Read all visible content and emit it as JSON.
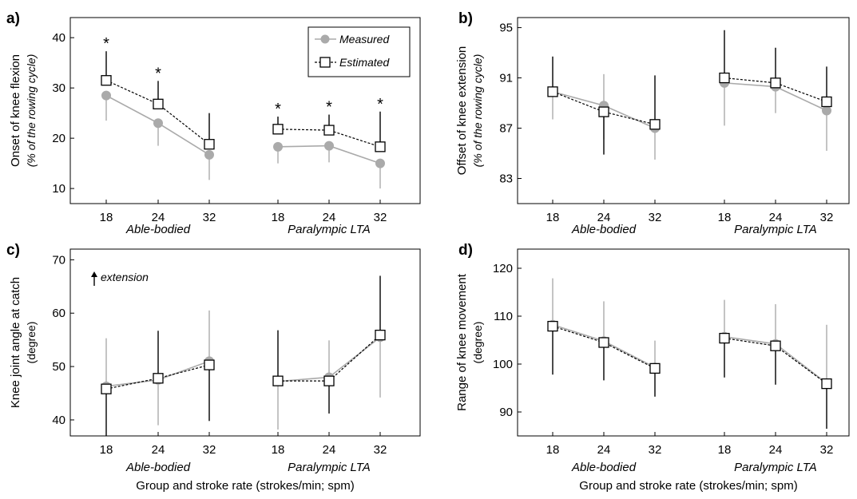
{
  "figure": {
    "xlabel": "Group and stroke rate (strokes/min;  spm)",
    "legend": {
      "measured": "Measured",
      "estimated": "Estimated",
      "measured_color": "#aaaaaa",
      "estimated_color": "#000000",
      "placement": "top-right of panel a"
    }
  },
  "chart_data": [
    {
      "type": "line",
      "panel": "a)",
      "ylabel": "Onset of knee flexion",
      "ylabel_sub": "(% of the rowing cycle)",
      "ylim": [
        7,
        44
      ],
      "yticks": [
        10,
        20,
        30,
        40
      ],
      "groups": [
        "Able-bodied",
        "Paralympic LTA"
      ],
      "categories": [
        "18",
        "24",
        "32",
        "18",
        "24",
        "32"
      ],
      "series": [
        {
          "name": "Measured",
          "values": [
            28.5,
            23.0,
            16.7,
            18.3,
            18.5,
            15.0
          ],
          "err_lo": [
            5.0,
            4.5,
            5.0,
            3.3,
            3.3,
            5.0
          ],
          "err_hi": [
            0,
            0,
            0,
            0,
            0,
            0
          ]
        },
        {
          "name": "Estimated",
          "values": [
            31.5,
            26.8,
            18.8,
            21.8,
            21.6,
            18.3
          ],
          "err_lo": [
            0,
            0,
            0,
            0,
            0,
            0
          ],
          "err_hi": [
            5.8,
            4.6,
            6.2,
            2.5,
            3.1,
            7.0
          ]
        }
      ],
      "significance": [
        "*",
        "*",
        "",
        "*",
        "*",
        "*"
      ]
    },
    {
      "type": "line",
      "panel": "b)",
      "ylabel": "Offset of knee extension",
      "ylabel_sub": "(% of the rowing cycle)",
      "ylim": [
        81,
        95.8
      ],
      "yticks": [
        83,
        87,
        91,
        95
      ],
      "groups": [
        "Able-bodied",
        "Paralympic LTA"
      ],
      "categories": [
        "18",
        "24",
        "32",
        "18",
        "24",
        "32"
      ],
      "series": [
        {
          "name": "Measured",
          "values": [
            89.9,
            88.8,
            87.0,
            90.6,
            90.3,
            88.4
          ],
          "err_lo": [
            2.2,
            2.7,
            2.5,
            3.4,
            2.1,
            3.2
          ],
          "err_hi": [
            0,
            2.5,
            0,
            0,
            0,
            0
          ]
        },
        {
          "name": "Estimated",
          "values": [
            89.9,
            88.3,
            87.3,
            91.0,
            90.6,
            89.1
          ],
          "err_lo": [
            0,
            3.4,
            0,
            0,
            0,
            0
          ],
          "err_hi": [
            2.8,
            0,
            3.9,
            3.8,
            2.8,
            2.8
          ]
        }
      ]
    },
    {
      "type": "line",
      "panel": "c)",
      "ylabel": "Knee joint angle at catch",
      "ylabel_sub": "(degree)",
      "ylim": [
        37,
        72
      ],
      "yticks": [
        40,
        50,
        60,
        70
      ],
      "annotation": "extension",
      "groups": [
        "Able-bodied",
        "Paralympic LTA"
      ],
      "categories": [
        "18",
        "24",
        "32",
        "18",
        "24",
        "32"
      ],
      "series": [
        {
          "name": "Measured",
          "values": [
            46.3,
            47.5,
            51.0,
            47.2,
            48.0,
            55.5
          ],
          "err_lo": [
            0,
            8.5,
            0,
            9.0,
            0,
            11.3
          ],
          "err_hi": [
            9.0,
            0,
            9.5,
            0,
            6.9,
            0
          ]
        },
        {
          "name": "Estimated",
          "values": [
            45.8,
            47.8,
            50.3,
            47.3,
            47.3,
            55.9
          ],
          "err_lo": [
            8.8,
            0,
            10.5,
            0,
            6.1,
            0
          ],
          "err_hi": [
            0,
            8.9,
            0,
            9.5,
            0,
            11.1
          ]
        }
      ]
    },
    {
      "type": "line",
      "panel": "d)",
      "ylabel": "Range of knee movement",
      "ylabel_sub": "(degree)",
      "ylim": [
        85,
        124
      ],
      "yticks": [
        90,
        100,
        110,
        120
      ],
      "groups": [
        "Able-bodied",
        "Paralympic LTA"
      ],
      "categories": [
        "18",
        "24",
        "32",
        "18",
        "24",
        "32"
      ],
      "series": [
        {
          "name": "Measured",
          "values": [
            108.2,
            104.8,
            99.3,
            105.7,
            104.2,
            96.0
          ],
          "err_lo": [
            0,
            0,
            0,
            0,
            0,
            0
          ],
          "err_hi": [
            9.7,
            8.3,
            5.6,
            7.7,
            8.3,
            12.2
          ]
        },
        {
          "name": "Estimated",
          "values": [
            107.9,
            104.5,
            99.1,
            105.4,
            103.8,
            95.9
          ],
          "err_lo": [
            10.1,
            7.9,
            5.9,
            8.2,
            8.1,
            9.4
          ],
          "err_hi": [
            0,
            0,
            0,
            0,
            0,
            0
          ]
        }
      ]
    }
  ]
}
